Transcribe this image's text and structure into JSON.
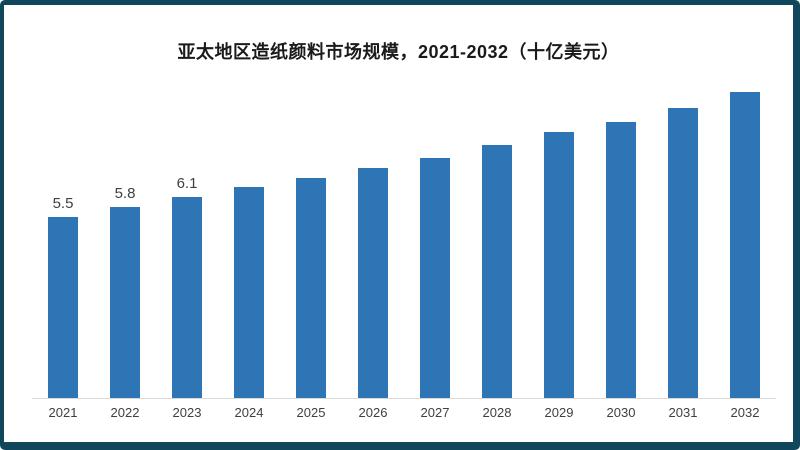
{
  "frame": {
    "border_color": "#11475C",
    "background": "#ffffff"
  },
  "chart_data": {
    "type": "bar",
    "title": "亚太地区造纸颜料市场规模，2021-2032（十亿美元）",
    "categories": [
      "2021",
      "2022",
      "2023",
      "2024",
      "2025",
      "2026",
      "2027",
      "2028",
      "2029",
      "2030",
      "2031",
      "2032"
    ],
    "values": [
      5.5,
      5.8,
      6.1,
      6.4,
      6.7,
      7.0,
      7.3,
      7.7,
      8.1,
      8.4,
      8.8,
      9.3
    ],
    "data_labels": [
      "5.5",
      "5.8",
      "6.1",
      "",
      "",
      "",
      "",
      "",
      "",
      "",
      "",
      ""
    ],
    "xlabel": "",
    "ylabel": "",
    "ylim": [
      0,
      10
    ],
    "grid": false,
    "legend": "none",
    "bar_color": "#2E75B6",
    "axis_line_color": "#D9D9D9",
    "data_label_color": "#404040",
    "tick_label_color": "#3F3F3F",
    "title_color": "#1A1A1A"
  }
}
